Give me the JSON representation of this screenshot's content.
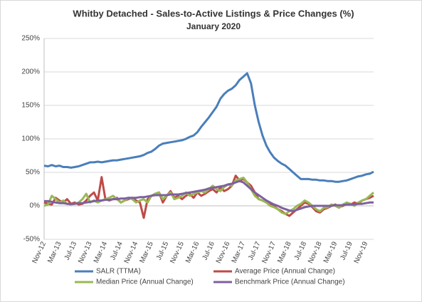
{
  "chart_data": {
    "type": "line",
    "title": "Whitby Detached - Sales-to-Active Listings & Price Changes (%)",
    "subtitle": "January 2020",
    "categories": [
      "Nov-12",
      null,
      null,
      null,
      "Mar-13",
      null,
      null,
      null,
      "Jul-13",
      null,
      null,
      null,
      "Nov-13",
      null,
      null,
      null,
      "Mar-14",
      null,
      null,
      null,
      "Jul-14",
      null,
      null,
      null,
      "Nov-14",
      null,
      null,
      null,
      "Mar-15",
      null,
      null,
      null,
      "Jul-15",
      null,
      null,
      null,
      "Nov-15",
      null,
      null,
      null,
      "Mar-16",
      null,
      null,
      null,
      "Jul-16",
      null,
      null,
      null,
      "Nov-16",
      null,
      null,
      null,
      "Mar-17",
      null,
      null,
      null,
      "Jul-17",
      null,
      null,
      null,
      "Nov-17",
      null,
      null,
      null,
      "Mar-18",
      null,
      null,
      null,
      "Jul-18",
      null,
      null,
      null,
      "Nov-18",
      null,
      null,
      null,
      "Mar-19",
      null,
      null,
      null,
      "Jul-19",
      null,
      null,
      null,
      "Nov-19",
      null,
      null
    ],
    "series": [
      {
        "name": "SALR (TTMA)",
        "color": "#4a7ebb",
        "values": [
          60,
          59,
          61,
          59,
          60,
          58,
          58,
          57,
          58,
          59,
          61,
          63,
          65,
          65,
          66,
          65,
          66,
          67,
          68,
          68,
          69,
          70,
          71,
          72,
          73,
          74,
          76,
          79,
          81,
          85,
          90,
          93,
          94,
          95,
          96,
          97,
          98,
          100,
          103,
          105,
          110,
          118,
          125,
          132,
          140,
          148,
          160,
          167,
          172,
          175,
          180,
          188,
          193,
          198,
          183,
          150,
          125,
          105,
          90,
          80,
          72,
          67,
          63,
          60,
          55,
          50,
          45,
          40,
          40,
          40,
          39,
          39,
          38,
          38,
          37,
          37,
          36,
          36,
          37,
          38,
          40,
          42,
          44,
          45,
          47,
          48,
          51
        ]
      },
      {
        "name": "Average Price (Annual Change)",
        "color": "#be4b48",
        "values": [
          5,
          3,
          2,
          12,
          8,
          5,
          10,
          3,
          5,
          2,
          3,
          8,
          15,
          20,
          8,
          43,
          10,
          8,
          10,
          12,
          5,
          8,
          10,
          12,
          8,
          5,
          -18,
          10,
          15,
          18,
          20,
          5,
          15,
          22,
          12,
          15,
          10,
          15,
          18,
          12,
          20,
          15,
          18,
          22,
          25,
          20,
          28,
          22,
          25,
          30,
          45,
          38,
          40,
          35,
          30,
          20,
          10,
          8,
          5,
          3,
          0,
          -5,
          -8,
          -12,
          -15,
          -10,
          -5,
          0,
          5,
          3,
          -2,
          -8,
          -10,
          -5,
          -3,
          0,
          2,
          -2,
          0,
          3,
          2,
          5,
          3,
          8,
          10,
          12,
          15
        ]
      },
      {
        "name": "Median Price (Annual Change)",
        "color": "#98b954",
        "values": [
          0,
          2,
          15,
          10,
          5,
          8,
          3,
          2,
          3,
          5,
          10,
          18,
          5,
          8,
          5,
          8,
          10,
          12,
          15,
          10,
          5,
          8,
          12,
          10,
          5,
          8,
          10,
          5,
          15,
          18,
          20,
          10,
          15,
          20,
          10,
          12,
          15,
          20,
          15,
          18,
          20,
          22,
          20,
          25,
          30,
          25,
          22,
          28,
          32,
          30,
          38,
          40,
          42,
          35,
          25,
          15,
          10,
          8,
          5,
          0,
          -2,
          -5,
          -10,
          -12,
          -8,
          -5,
          0,
          3,
          8,
          5,
          0,
          -5,
          -8,
          -3,
          -2,
          2,
          0,
          -3,
          2,
          5,
          3,
          0,
          5,
          8,
          10,
          15,
          20
        ]
      },
      {
        "name": "Benchmark Price (Annual Change)",
        "color": "#7d60a0",
        "values": [
          7,
          7,
          6,
          5,
          4,
          4,
          3,
          3,
          3,
          4,
          4,
          5,
          6,
          7,
          8,
          8,
          9,
          9,
          10,
          10,
          11,
          11,
          12,
          12,
          12,
          13,
          13,
          14,
          15,
          16,
          16,
          16,
          16,
          17,
          17,
          17,
          18,
          19,
          20,
          21,
          22,
          23,
          24,
          26,
          27,
          28,
          29,
          30,
          32,
          33,
          35,
          37,
          35,
          30,
          25,
          20,
          16,
          12,
          8,
          5,
          2,
          0,
          -3,
          -5,
          -7,
          -8,
          -6,
          -4,
          -2,
          -1,
          0,
          0,
          0,
          0,
          0,
          0,
          1,
          1,
          1,
          2,
          2,
          2,
          3,
          3,
          4,
          5,
          5
        ]
      }
    ],
    "ylim": [
      -50,
      250
    ],
    "yticks": [
      {
        "value": -50,
        "label": "-50%"
      },
      {
        "value": 0,
        "label": "0%"
      },
      {
        "value": 50,
        "label": "50%"
      },
      {
        "value": 100,
        "label": "100%"
      },
      {
        "value": 150,
        "label": "150%"
      },
      {
        "value": 200,
        "label": "200%"
      },
      {
        "value": 250,
        "label": "250%"
      }
    ],
    "grid": true,
    "legend": "bottom"
  }
}
